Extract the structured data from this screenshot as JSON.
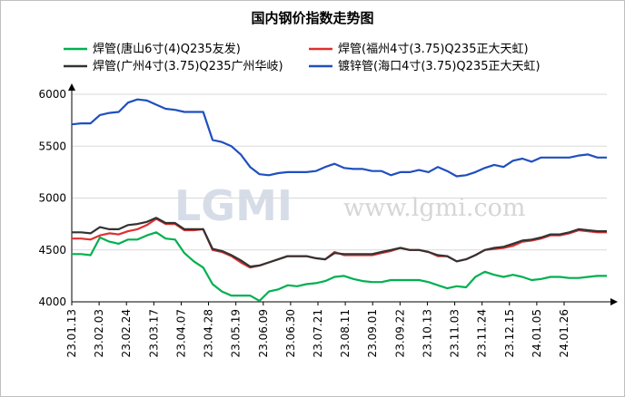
{
  "chart_data": {
    "type": "line",
    "title": "国内钢价指数走势图",
    "watermark": {
      "logo": "LGMI",
      "url": "www.lgmi.com"
    },
    "ylim": [
      4000,
      6000
    ],
    "yticks": [
      4000,
      4500,
      5000,
      5500,
      6000
    ],
    "grid": true,
    "legend_position": "top",
    "x_tick_labels": [
      "23.01.13",
      "23.02.03",
      "23.02.24",
      "23.03.17",
      "23.04.07",
      "23.04.28",
      "23.05.19",
      "23.06.09",
      "23.06.30",
      "23.07.21",
      "23.08.11",
      "23.09.01",
      "23.09.22",
      "23.10.13",
      "23.11.03",
      "23.11.24",
      "23.12.15",
      "24.01.05",
      "24.01.26"
    ],
    "series": [
      {
        "name": "焊管(唐山6寸(4)Q235友发)",
        "color": "#00b050",
        "values": [
          4460,
          4460,
          4450,
          4620,
          4580,
          4560,
          4600,
          4600,
          4640,
          4670,
          4610,
          4600,
          4470,
          4390,
          4330,
          4170,
          4100,
          4060,
          4060,
          4060,
          4010,
          4100,
          4120,
          4160,
          4150,
          4170,
          4180,
          4200,
          4240,
          4250,
          4220,
          4200,
          4190,
          4190,
          4210,
          4210,
          4210,
          4210,
          4190,
          4160,
          4130,
          4150,
          4140,
          4240,
          4290,
          4260,
          4240,
          4260,
          4240,
          4210,
          4220,
          4240,
          4240,
          4230,
          4230,
          4240,
          4250,
          4250
        ]
      },
      {
        "name": "焊管(福州4寸(3.75)Q235正大天虹)",
        "color": "#e03030",
        "values": [
          4610,
          4610,
          4600,
          4640,
          4660,
          4650,
          4680,
          4700,
          4740,
          4800,
          4750,
          4750,
          4690,
          4690,
          4700,
          4500,
          4480,
          4440,
          4380,
          4330,
          4350,
          4380,
          4410,
          4440,
          4440,
          4440,
          4420,
          4410,
          4480,
          4450,
          4450,
          4450,
          4450,
          4470,
          4490,
          4520,
          4500,
          4500,
          4480,
          4440,
          4440,
          4390,
          4410,
          4450,
          4500,
          4510,
          4520,
          4540,
          4580,
          4590,
          4610,
          4640,
          4640,
          4660,
          4690,
          4680,
          4670,
          4670
        ]
      },
      {
        "name": "焊管(广州4寸(3.75)Q235广州华岐)",
        "color": "#333333",
        "values": [
          4670,
          4670,
          4660,
          4720,
          4700,
          4700,
          4740,
          4750,
          4770,
          4810,
          4760,
          4760,
          4700,
          4700,
          4700,
          4510,
          4490,
          4450,
          4400,
          4340,
          4350,
          4380,
          4410,
          4440,
          4440,
          4440,
          4420,
          4410,
          4470,
          4460,
          4460,
          4460,
          4460,
          4480,
          4500,
          4520,
          4500,
          4500,
          4480,
          4450,
          4440,
          4390,
          4410,
          4450,
          4500,
          4520,
          4530,
          4560,
          4590,
          4600,
          4620,
          4650,
          4650,
          4670,
          4700,
          4690,
          4680,
          4680
        ]
      },
      {
        "name": "镀锌管(海口4寸(3.75)Q235正大天虹)",
        "color": "#1f4fbf",
        "values": [
          5710,
          5720,
          5720,
          5800,
          5820,
          5830,
          5920,
          5950,
          5940,
          5900,
          5860,
          5850,
          5830,
          5830,
          5830,
          5560,
          5540,
          5500,
          5420,
          5300,
          5230,
          5220,
          5240,
          5250,
          5250,
          5250,
          5260,
          5300,
          5330,
          5290,
          5280,
          5280,
          5260,
          5260,
          5220,
          5250,
          5250,
          5270,
          5250,
          5300,
          5260,
          5210,
          5220,
          5250,
          5290,
          5320,
          5300,
          5360,
          5380,
          5350,
          5390,
          5390,
          5390,
          5390,
          5410,
          5420,
          5390,
          5390
        ]
      }
    ]
  }
}
